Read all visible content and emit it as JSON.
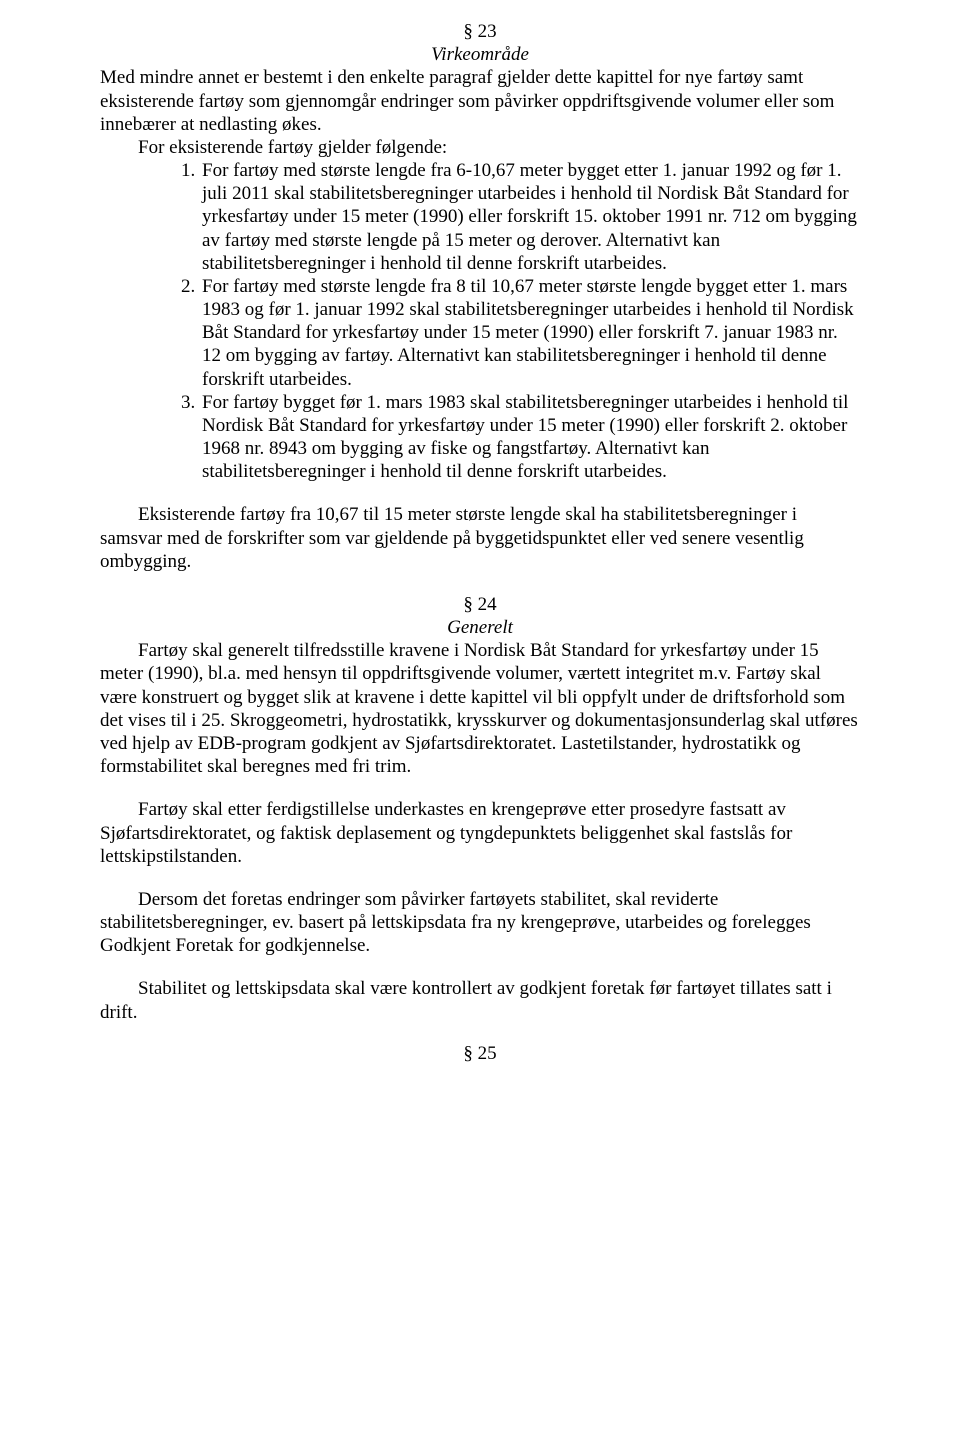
{
  "section23": {
    "number": "§ 23",
    "title": "Virkeområde",
    "intro": "Med mindre annet er bestemt i den enkelte paragraf gjelder dette kapittel for nye fartøy samt eksisterende fartøy som gjennomgår endringer som påvirker oppdriftsgivende volumer eller som innebærer at nedlasting økes.",
    "lead": "For eksisterende fartøy gjelder følgende:",
    "items": [
      "For fartøy med største lengde fra 6-10,67 meter bygget etter 1. januar 1992 og før 1. juli 2011 skal stabilitetsberegninger utarbeides i henhold til Nordisk Båt Standard for yrkesfartøy under 15 meter (1990) eller forskrift 15. oktober 1991 nr. 712 om bygging av fartøy med største lengde på 15 meter og derover. Alternativt kan stabilitetsberegninger i henhold til denne forskrift utarbeides.",
      "For fartøy med største lengde fra 8 til 10,67 meter største lengde bygget etter 1. mars 1983 og før 1. januar 1992 skal stabilitetsberegninger utarbeides i henhold til Nordisk Båt Standard for yrkesfartøy under 15 meter (1990) eller forskrift 7. januar 1983 nr. 12 om bygging av fartøy. Alternativt kan stabilitetsberegninger i henhold til denne forskrift utarbeides.",
      "For fartøy bygget før 1. mars 1983 skal stabilitetsberegninger utarbeides i henhold til Nordisk Båt Standard for yrkesfartøy under 15 meter (1990) eller forskrift 2. oktober 1968 nr. 8943 om bygging av fiske og fangstfartøy. Alternativt kan stabilitetsberegninger i henhold til denne forskrift utarbeides."
    ],
    "after": "Eksisterende fartøy fra 10,67 til 15 meter største lengde skal ha stabilitetsberegninger i samsvar med de forskrifter som var gjeldende på byggetidspunktet eller ved senere vesentlig ombygging."
  },
  "section24": {
    "number": "§ 24",
    "title": "Generelt",
    "p1": "Fartøy skal generelt tilfredsstille kravene i Nordisk Båt Standard for yrkesfartøy under 15 meter (1990), bl.a. med hensyn til oppdriftsgivende volumer, værtett integritet m.v. Fartøy skal være konstruert og bygget slik at kravene i dette kapittel vil bli oppfylt under de driftsforhold som det vises til i 25. Skroggeometri, hydrostatikk, krysskurver og dokumentasjonsunderlag skal utføres ved hjelp av EDB-program godkjent av Sjøfartsdirektoratet. Lastetilstander, hydrostatikk og formstabilitet skal beregnes med fri trim.",
    "p2": "Fartøy skal etter ferdigstillelse underkastes en krengeprøve etter prosedyre fastsatt av Sjøfartsdirektoratet, og faktisk deplasement og tyngdepunktets beliggenhet skal fastslås for lettskipstilstanden.",
    "p3": "Dersom det foretas endringer som påvirker fartøyets stabilitet, skal reviderte stabilitetsberegninger, ev. basert på lettskipsdata fra ny krengeprøve, utarbeides og forelegges Godkjent Foretak for godkjennelse.",
    "p4": "Stabilitet og lettskipsdata skal være kontrollert av godkjent foretak før fartøyet tillates satt i drift."
  },
  "section25": {
    "number": "§ 25"
  }
}
